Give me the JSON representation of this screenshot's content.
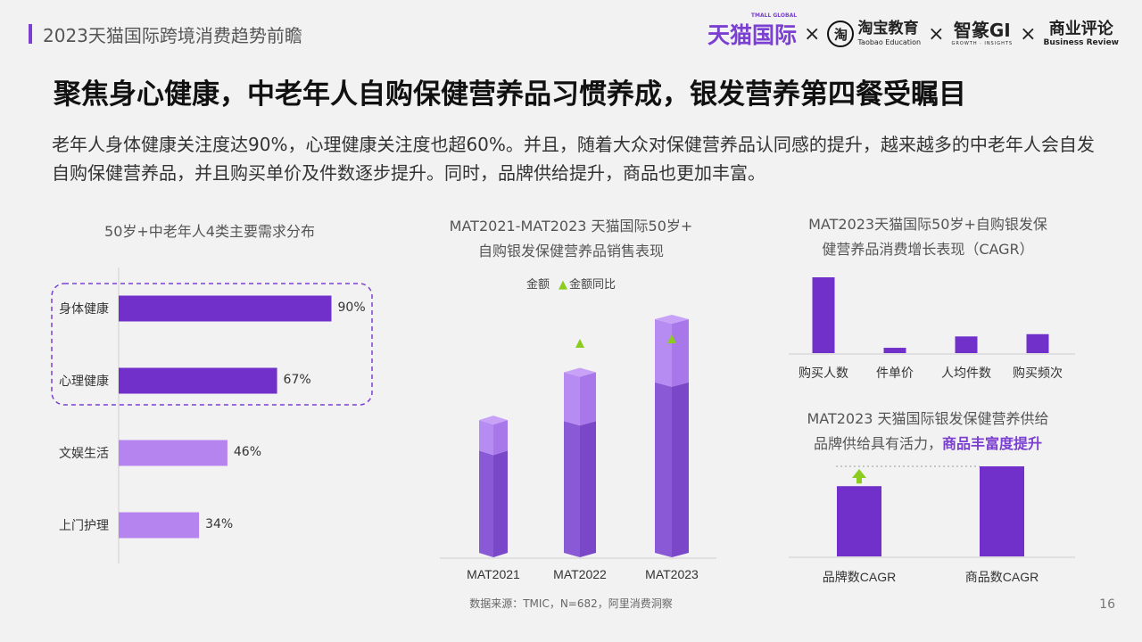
{
  "header": {
    "title": "2023天猫国际跨境消费趋势前瞻",
    "logos": {
      "tmall": "天猫国际",
      "tmall_small": "TMALL GLOBAL",
      "taobao_glyph": "淘",
      "taobao_main": "淘宝教育",
      "taobao_sub": "Taobao Education",
      "gi_main": "智篆GI",
      "gi_sub": "GROWTH · INSIGHTS",
      "br_main": "商业评论",
      "br_sub": "Business Review",
      "separator": "×"
    }
  },
  "slide": {
    "title": "聚焦身心健康，中老年人自购保健营养品习惯养成，银发营养第四餐受瞩目",
    "body": "老年人身体健康关注度达90%，心理健康关注度也超60%。并且，随着大众对保健营养品认同感的提升，越来越多的中老年人会自发自购保健营养品，并且购买单价及件数逐步提升。同时，品牌供给提升，商品也更加丰富。"
  },
  "colors": {
    "dark_purple": "#7130c9",
    "light_purple": "#b584ee",
    "growth_green": "#8ccc1e",
    "highlight_border": "#7b3fd1"
  },
  "chart_data": [
    {
      "type": "bar",
      "orientation": "horizontal",
      "title": "50岁+中老年人4类主要需求分布",
      "categories": [
        "身体健康",
        "心理健康",
        "文娱生活",
        "上门护理"
      ],
      "values": [
        90,
        67,
        46,
        34
      ],
      "value_labels": [
        "90%",
        "67%",
        "46%",
        "34%"
      ],
      "highlighted": [
        "身体健康",
        "心理健康"
      ],
      "xlim": [
        0,
        100
      ]
    },
    {
      "type": "bar",
      "title_lines": [
        "MAT2021-MAT2023 天猫国际50岁+",
        "自购银发保健营养品销售表现"
      ],
      "legend": [
        "金额",
        "金额同比"
      ],
      "categories": [
        "MAT2021",
        "MAT2022",
        "MAT2023"
      ],
      "values": [
        1.0,
        1.36,
        1.76
      ],
      "yoy_growth_marker": [
        false,
        true,
        true
      ]
    },
    {
      "type": "bar",
      "title_lines": [
        "MAT2023天猫国际50岁+自购银发保",
        "健营养品消费增长表现（CAGR）"
      ],
      "categories": [
        "购买人数",
        "件单价",
        "人均件数",
        "购买频次"
      ],
      "values": [
        100,
        7,
        22,
        25
      ]
    },
    {
      "type": "bar",
      "title_lines": [
        "MAT2023 天猫国际银发保健营养供给"
      ],
      "subtitle_prefix": "品牌供给具有活力，",
      "subtitle_highlight": "商品丰富度提升",
      "categories": [
        "品牌数CAGR",
        "商品数CAGR"
      ],
      "values": [
        78,
        100
      ]
    }
  ],
  "footer": {
    "source": "数据来源：TMIC，N=682，阿里消费洞察",
    "page": "16"
  }
}
